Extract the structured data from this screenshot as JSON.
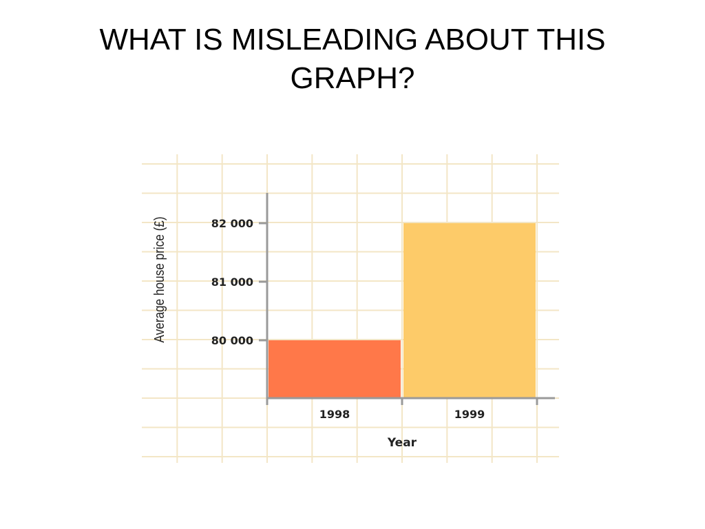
{
  "slide": {
    "title": "WHAT IS MISLEADING ABOUT THIS GRAPH?"
  },
  "chart_data": {
    "type": "bar",
    "title": "",
    "xlabel": "Year",
    "ylabel": "Average house price (£)",
    "categories": [
      "1998",
      "1999"
    ],
    "values": [
      80000,
      82000
    ],
    "y_ticks": [
      80000,
      81000,
      82000
    ],
    "y_tick_labels": [
      "80 000",
      "81 000",
      "82 000"
    ],
    "ylim": [
      79500,
      82500
    ],
    "grid": true,
    "legend": "none",
    "colors": {
      "bar_1998": "#ff7849",
      "bar_1999": "#fdcb69",
      "grid": "#f3e6c6",
      "axis": "#9a9a9a"
    }
  }
}
